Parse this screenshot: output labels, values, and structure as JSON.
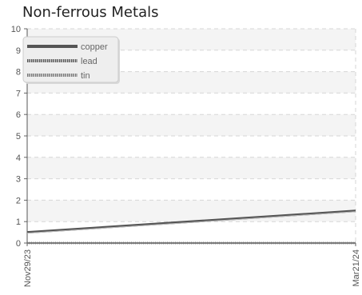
{
  "chart_data": {
    "type": "line",
    "title": "Non-ferrous Metals",
    "xlabel": "",
    "ylabel": "",
    "x": [
      "Nov29/23",
      "Mar21/24"
    ],
    "ylim": [
      0,
      10
    ],
    "yticks": [
      0,
      1,
      2,
      3,
      4,
      5,
      6,
      7,
      8,
      9,
      10
    ],
    "grid": true,
    "legend_position": "top-left",
    "series": [
      {
        "name": "copper",
        "values": [
          0.5,
          1.5
        ],
        "color": "#555555",
        "style": "solid"
      },
      {
        "name": "lead",
        "values": [
          0.0,
          0.0
        ],
        "color": "#555555",
        "style": "dotted"
      },
      {
        "name": "tin",
        "values": [
          0.0,
          0.0
        ],
        "color": "#777777",
        "style": "dotted"
      }
    ]
  }
}
